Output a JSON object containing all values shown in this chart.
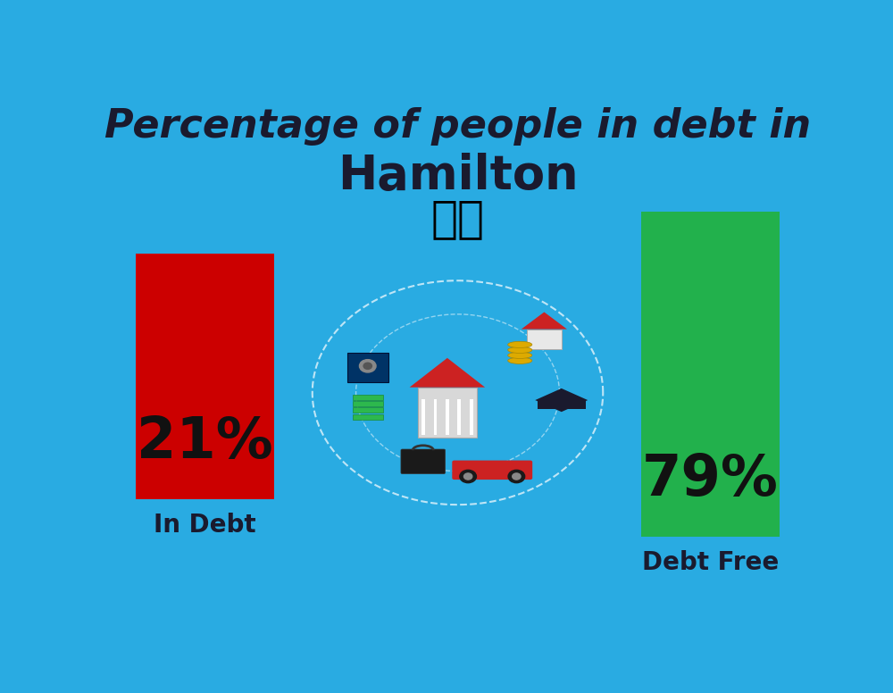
{
  "title_line1": "Percentage of people in debt in",
  "title_line2": "Hamilton",
  "background_color": "#29ABE2",
  "bar1_value": 21,
  "bar1_label": "In Debt",
  "bar1_color": "#CC0000",
  "bar1_pct_text": "21%",
  "bar2_value": 79,
  "bar2_label": "Debt Free",
  "bar2_color": "#22B14C",
  "bar2_pct_text": "79%",
  "title_color": "#1a1a2e",
  "label_color": "#1a1a2e",
  "pct_color": "#111111",
  "title_fontsize": 32,
  "subtitle_fontsize": 38,
  "label_fontsize": 20,
  "pct_fontsize": 46,
  "flag_emoji": "🇳🇿"
}
